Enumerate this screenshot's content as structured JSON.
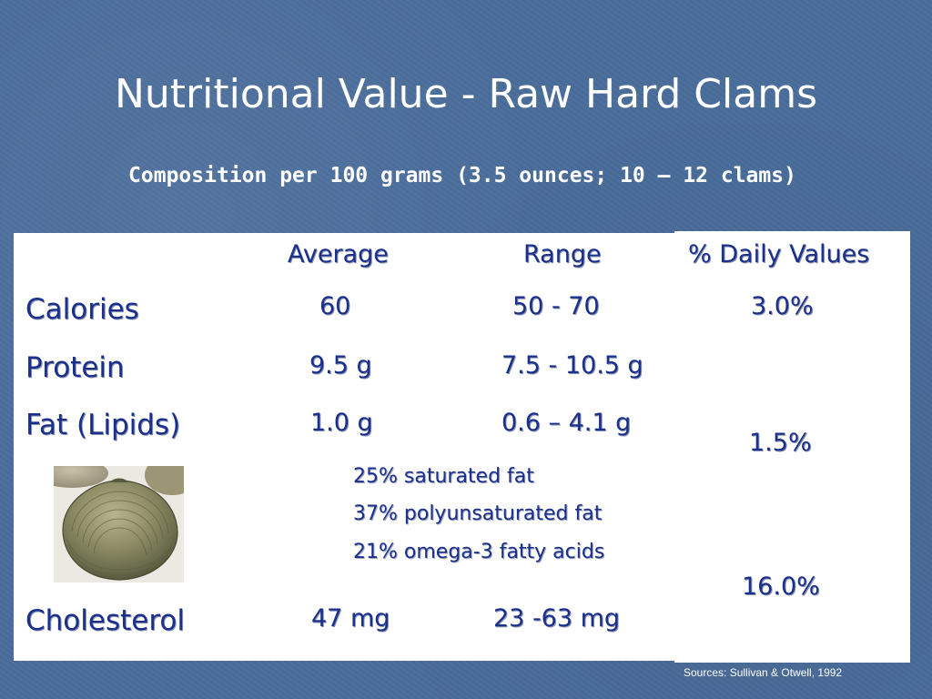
{
  "title": "Nutritional Value - Raw Hard Clams",
  "subtitle": "Composition per 100 grams (3.5 ounces; 10 – 12 clams)",
  "table": {
    "headers": {
      "average": "Average",
      "range": "Range",
      "daily": "% Daily Values"
    },
    "rows": [
      {
        "label": "Calories",
        "average": "60",
        "range": "50 - 70",
        "daily": "3.0%"
      },
      {
        "label": "Protein",
        "average": "9.5  g",
        "range": "7.5 - 10.5 g"
      },
      {
        "label": "Fat (Lipids)",
        "average": "1.0 g",
        "range": "0.6 –  4.1 g",
        "daily": "1.5%"
      },
      {
        "label": "Cholesterol",
        "average": "47 mg",
        "range": "23 -63 mg",
        "daily": "16.0%"
      }
    ],
    "fat_breakdown": [
      "25% saturated fat",
      "37% polyunsaturated fat",
      "21%  omega-3 fatty acids"
    ]
  },
  "source": "Sources: Sullivan & Otwell, 1992",
  "image": {
    "icon": "clam-photo"
  },
  "colors": {
    "background": "#4a6d9b",
    "text": "#1a2f8e",
    "panel": "#ffffff"
  }
}
